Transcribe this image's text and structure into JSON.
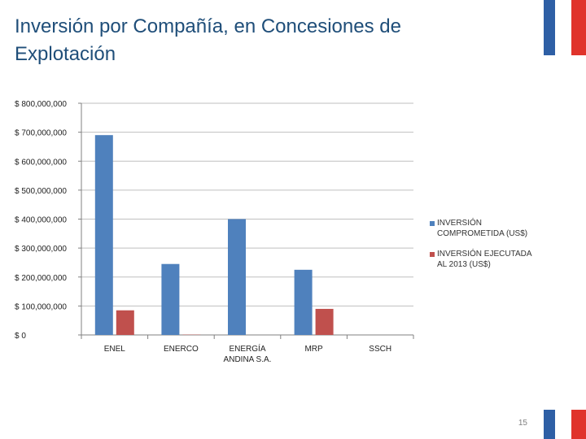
{
  "page": {
    "title": "Inversión por Compañía, en Concesiones de Explotación",
    "page_number": "15"
  },
  "colors": {
    "title": "#1f4e79",
    "series1": "#4f81bd",
    "series2": "#c0504d",
    "gridline": "#bfbfbf",
    "flag_blue": "#2e5fa5",
    "flag_red": "#e0332b"
  },
  "chart_data": {
    "type": "bar",
    "title": "",
    "xlabel": "",
    "ylabel": "",
    "ylim": [
      0,
      800000000
    ],
    "yticks": [
      0,
      100000000,
      200000000,
      300000000,
      400000000,
      500000000,
      600000000,
      700000000,
      800000000
    ],
    "ytick_labels": [
      "$ 0",
      "$ 100,000,000",
      "$ 200,000,000",
      "$ 300,000,000",
      "$ 400,000,000",
      "$ 500,000,000",
      "$ 600,000,000",
      "$ 700,000,000",
      "$ 800,000,000"
    ],
    "categories": [
      "ENEL",
      "ENERCO",
      "ENERGÍA ANDINA S.A.",
      "MRP",
      "SSCH"
    ],
    "category_lines": [
      [
        "ENEL"
      ],
      [
        "ENERCO"
      ],
      [
        "ENERGÍA",
        "ANDINA S.A."
      ],
      [
        "MRP"
      ],
      [
        "SSCH"
      ]
    ],
    "series": [
      {
        "name": "INVERSIÓN COMPROMETIDA (US$)",
        "legend_lines": [
          "INVERSIÓN",
          "COMPROMETIDA (US$)"
        ],
        "values": [
          690000000,
          245000000,
          400000000,
          225000000,
          0
        ]
      },
      {
        "name": "INVERSIÓN EJECUTADA AL 2013 (US$)",
        "legend_lines": [
          "INVERSIÓN EJECUTADA",
          "AL 2013 (US$)"
        ],
        "values": [
          85000000,
          1000000,
          0,
          90000000,
          0
        ]
      }
    ],
    "grid": true,
    "legend_position": "right"
  }
}
